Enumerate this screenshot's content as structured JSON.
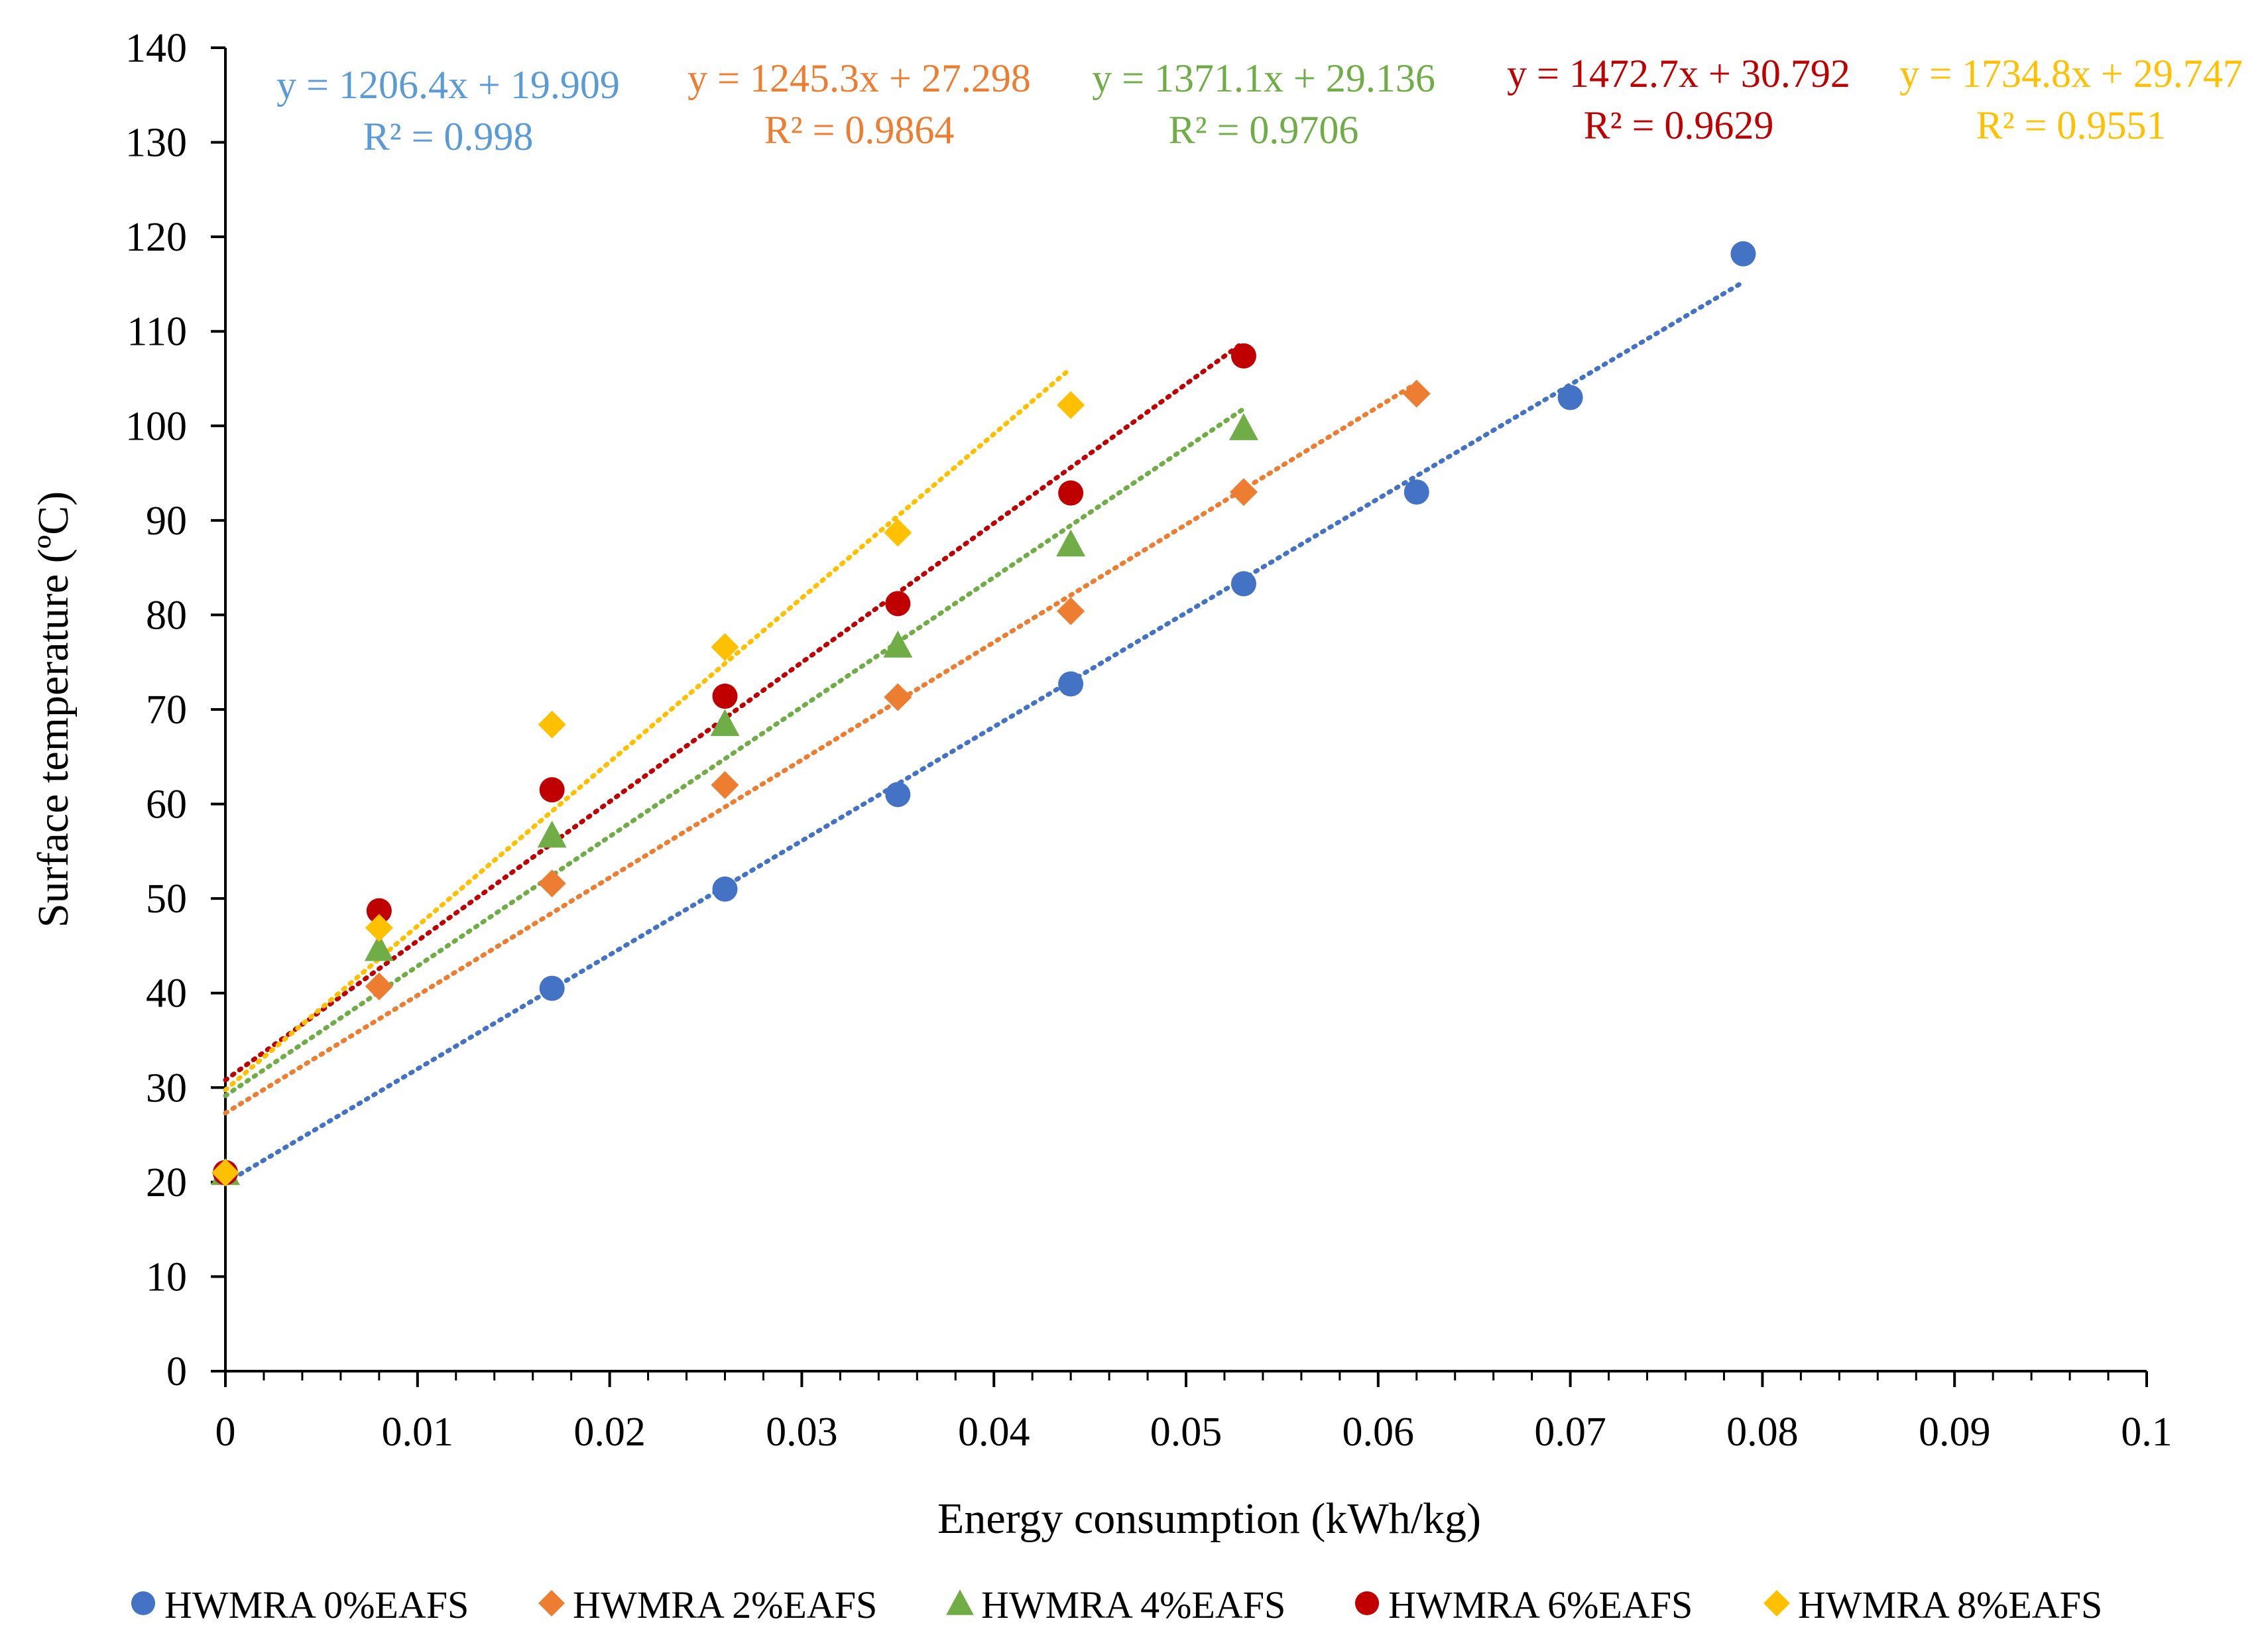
{
  "chart_data": {
    "type": "scatter",
    "title": "",
    "xlabel": "Energy consumption (kWh/kg)",
    "ylabel": "Surface temperature (ºC)",
    "xlim": [
      0,
      0.1
    ],
    "ylim": [
      0,
      140
    ],
    "x_ticks": [
      "0",
      "0.01",
      "0.02",
      "0.03",
      "0.04",
      "0.05",
      "0.06",
      "0.07",
      "0.08",
      "0.09",
      "0.1"
    ],
    "y_ticks": [
      "0",
      "10",
      "20",
      "30",
      "40",
      "50",
      "60",
      "70",
      "80",
      "90",
      "100",
      "110",
      "120",
      "130",
      "140"
    ],
    "grid": false,
    "legend_position": "bottom",
    "trendline_style": "dotted linear",
    "series": [
      {
        "name": "HWMRA 0%EAFS",
        "color": "#4472C4",
        "label_color": "#5B9BD5",
        "marker": "circle",
        "x": [
          0,
          0.017,
          0.026,
          0.035,
          0.044,
          0.053,
          0.062,
          0.07,
          0.079
        ],
        "y": [
          21,
          40.5,
          51,
          61,
          72.7,
          83.3,
          93,
          103,
          118.2
        ],
        "trendline": {
          "slope": 1206.4,
          "intercept": 19.909,
          "x_range": [
            0,
            0.079
          ]
        },
        "equation": "y = 1206.4x + 19.909",
        "r2": "R² = 0.998"
      },
      {
        "name": "HWMRA 2%EAFS",
        "color": "#ED7D31",
        "label_color": "#ED7D31",
        "marker": "diamond",
        "x": [
          0,
          0.008,
          0.017,
          0.026,
          0.035,
          0.044,
          0.053,
          0.062
        ],
        "y": [
          21,
          40.7,
          51.6,
          62,
          71.3,
          80.4,
          93,
          103.4
        ],
        "trendline": {
          "slope": 1245.3,
          "intercept": 27.298,
          "x_range": [
            0,
            0.062
          ]
        },
        "equation": "y = 1245.3x + 27.298",
        "r2": "R² = 0.9864"
      },
      {
        "name": "HWMRA 4%EAFS",
        "color": "#70AD47",
        "label_color": "#70AD47",
        "marker": "triangle",
        "x": [
          0,
          0.008,
          0.017,
          0.026,
          0.035,
          0.044,
          0.053
        ],
        "y": [
          21,
          44.7,
          56.7,
          68.5,
          76.8,
          87.5,
          99.8
        ],
        "trendline": {
          "slope": 1371.1,
          "intercept": 29.136,
          "x_range": [
            0,
            0.053
          ]
        },
        "equation": "y = 1371.1x + 29.136",
        "r2": "R² = 0.9706"
      },
      {
        "name": "HWMRA 6%EAFS",
        "color": "#C00000",
        "label_color": "#C00000",
        "marker": "circle",
        "x": [
          0,
          0.008,
          0.017,
          0.026,
          0.035,
          0.044,
          0.053
        ],
        "y": [
          21,
          48.7,
          61.5,
          71.4,
          81.2,
          92.9,
          107.4
        ],
        "trendline": {
          "slope": 1472.7,
          "intercept": 30.792,
          "x_range": [
            0,
            0.053
          ]
        },
        "equation": "y = 1472.7x + 30.792",
        "r2": "R² = 0.9629"
      },
      {
        "name": "HWMRA 8%EAFS",
        "color": "#FFC000",
        "label_color": "#FFC000",
        "marker": "diamond",
        "x": [
          0,
          0.008,
          0.017,
          0.026,
          0.035,
          0.044
        ],
        "y": [
          21,
          46.9,
          68.4,
          76.6,
          88.7,
          102.2
        ],
        "trendline": {
          "slope": 1734.8,
          "intercept": 29.747,
          "x_range": [
            0,
            0.044
          ]
        },
        "equation": "y = 1734.8x + 29.747",
        "r2": "R² = 0.9551"
      }
    ]
  }
}
